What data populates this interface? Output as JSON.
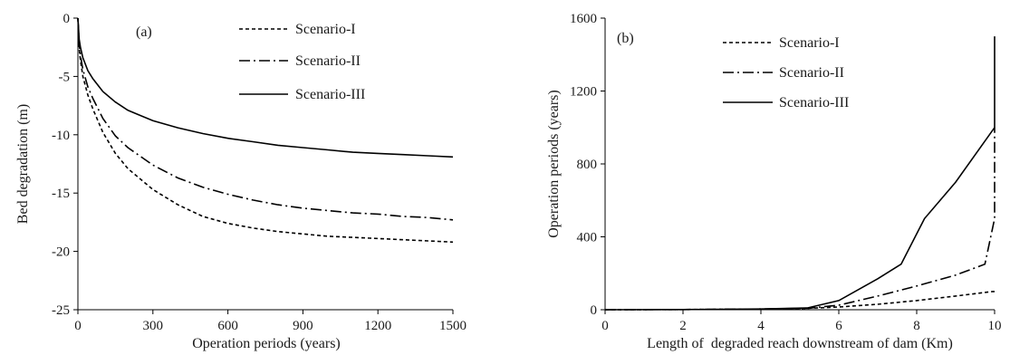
{
  "chart_data": [
    {
      "type": "line",
      "panel_label": "(a)",
      "xlabel": "Operation periods (years)",
      "ylabel": "Bed degradation (m)",
      "xlim": [
        0,
        1500
      ],
      "ylim": [
        -25,
        0
      ],
      "xticks": [
        0,
        300,
        600,
        900,
        1200,
        1500
      ],
      "yticks": [
        0,
        -5,
        -10,
        -15,
        -20,
        -25
      ],
      "legend_position": "top-right",
      "grid": false,
      "series": [
        {
          "name": "Scenario-I",
          "dash": "dashed",
          "x": [
            0,
            5,
            10,
            20,
            40,
            60,
            100,
            150,
            200,
            300,
            400,
            500,
            600,
            700,
            800,
            900,
            1000,
            1100,
            1200,
            1300,
            1400,
            1500
          ],
          "y": [
            0,
            -2.6,
            -3.6,
            -5.0,
            -6.6,
            -7.8,
            -9.8,
            -11.6,
            -12.9,
            -14.7,
            -16.0,
            -17.0,
            -17.6,
            -18.0,
            -18.3,
            -18.5,
            -18.7,
            -18.8,
            -18.9,
            -19.0,
            -19.1,
            -19.2
          ]
        },
        {
          "name": "Scenario-II",
          "dash": "dash-dot",
          "x": [
            0,
            5,
            10,
            20,
            40,
            60,
            100,
            150,
            200,
            300,
            400,
            500,
            600,
            700,
            800,
            900,
            1000,
            1100,
            1200,
            1300,
            1400,
            1500
          ],
          "y": [
            0,
            -2.3,
            -3.2,
            -4.4,
            -5.9,
            -6.9,
            -8.6,
            -10.1,
            -11.1,
            -12.6,
            -13.7,
            -14.5,
            -15.1,
            -15.6,
            -16.0,
            -16.3,
            -16.5,
            -16.7,
            -16.8,
            -17.0,
            -17.1,
            -17.3
          ]
        },
        {
          "name": "Scenario-III",
          "dash": "solid",
          "x": [
            0,
            5,
            10,
            20,
            40,
            60,
            100,
            150,
            200,
            300,
            400,
            500,
            600,
            700,
            800,
            900,
            1000,
            1100,
            1200,
            1300,
            1400,
            1500
          ],
          "y": [
            0,
            -1.8,
            -2.5,
            -3.4,
            -4.5,
            -5.2,
            -6.3,
            -7.2,
            -7.9,
            -8.8,
            -9.4,
            -9.9,
            -10.3,
            -10.6,
            -10.9,
            -11.1,
            -11.3,
            -11.5,
            -11.6,
            -11.7,
            -11.8,
            -11.9
          ]
        }
      ]
    },
    {
      "type": "line",
      "panel_label": "(b)",
      "xlabel": "Length of  degraded reach downstream of dam (Km)",
      "ylabel": "Operation periods (years)",
      "xlim": [
        0,
        10
      ],
      "ylim": [
        0,
        1600
      ],
      "xticks": [
        0,
        2,
        4,
        6,
        8,
        10
      ],
      "yticks": [
        0,
        400,
        800,
        1200,
        1600
      ],
      "legend_position": "top-center",
      "grid": false,
      "series": [
        {
          "name": "Scenario-I",
          "dash": "dashed",
          "x": [
            0,
            2,
            4,
            5,
            6,
            7,
            8,
            9,
            9.95,
            10
          ],
          "y": [
            0,
            1,
            3,
            6,
            15,
            30,
            50,
            75,
            100,
            100
          ]
        },
        {
          "name": "Scenario-II",
          "dash": "dash-dot",
          "x": [
            0,
            2,
            4,
            5.2,
            6,
            7,
            8,
            9,
            9.75,
            10,
            10
          ],
          "y": [
            0,
            1,
            4,
            8,
            25,
            75,
            130,
            190,
            250,
            500,
            1000
          ]
        },
        {
          "name": "Scenario-III",
          "dash": "solid",
          "x": [
            0,
            2,
            4,
            5.2,
            6,
            7,
            7.6,
            8.2,
            9,
            10,
            10
          ],
          "y": [
            0,
            1,
            4,
            10,
            50,
            170,
            250,
            500,
            700,
            1000,
            1500
          ]
        }
      ]
    }
  ]
}
